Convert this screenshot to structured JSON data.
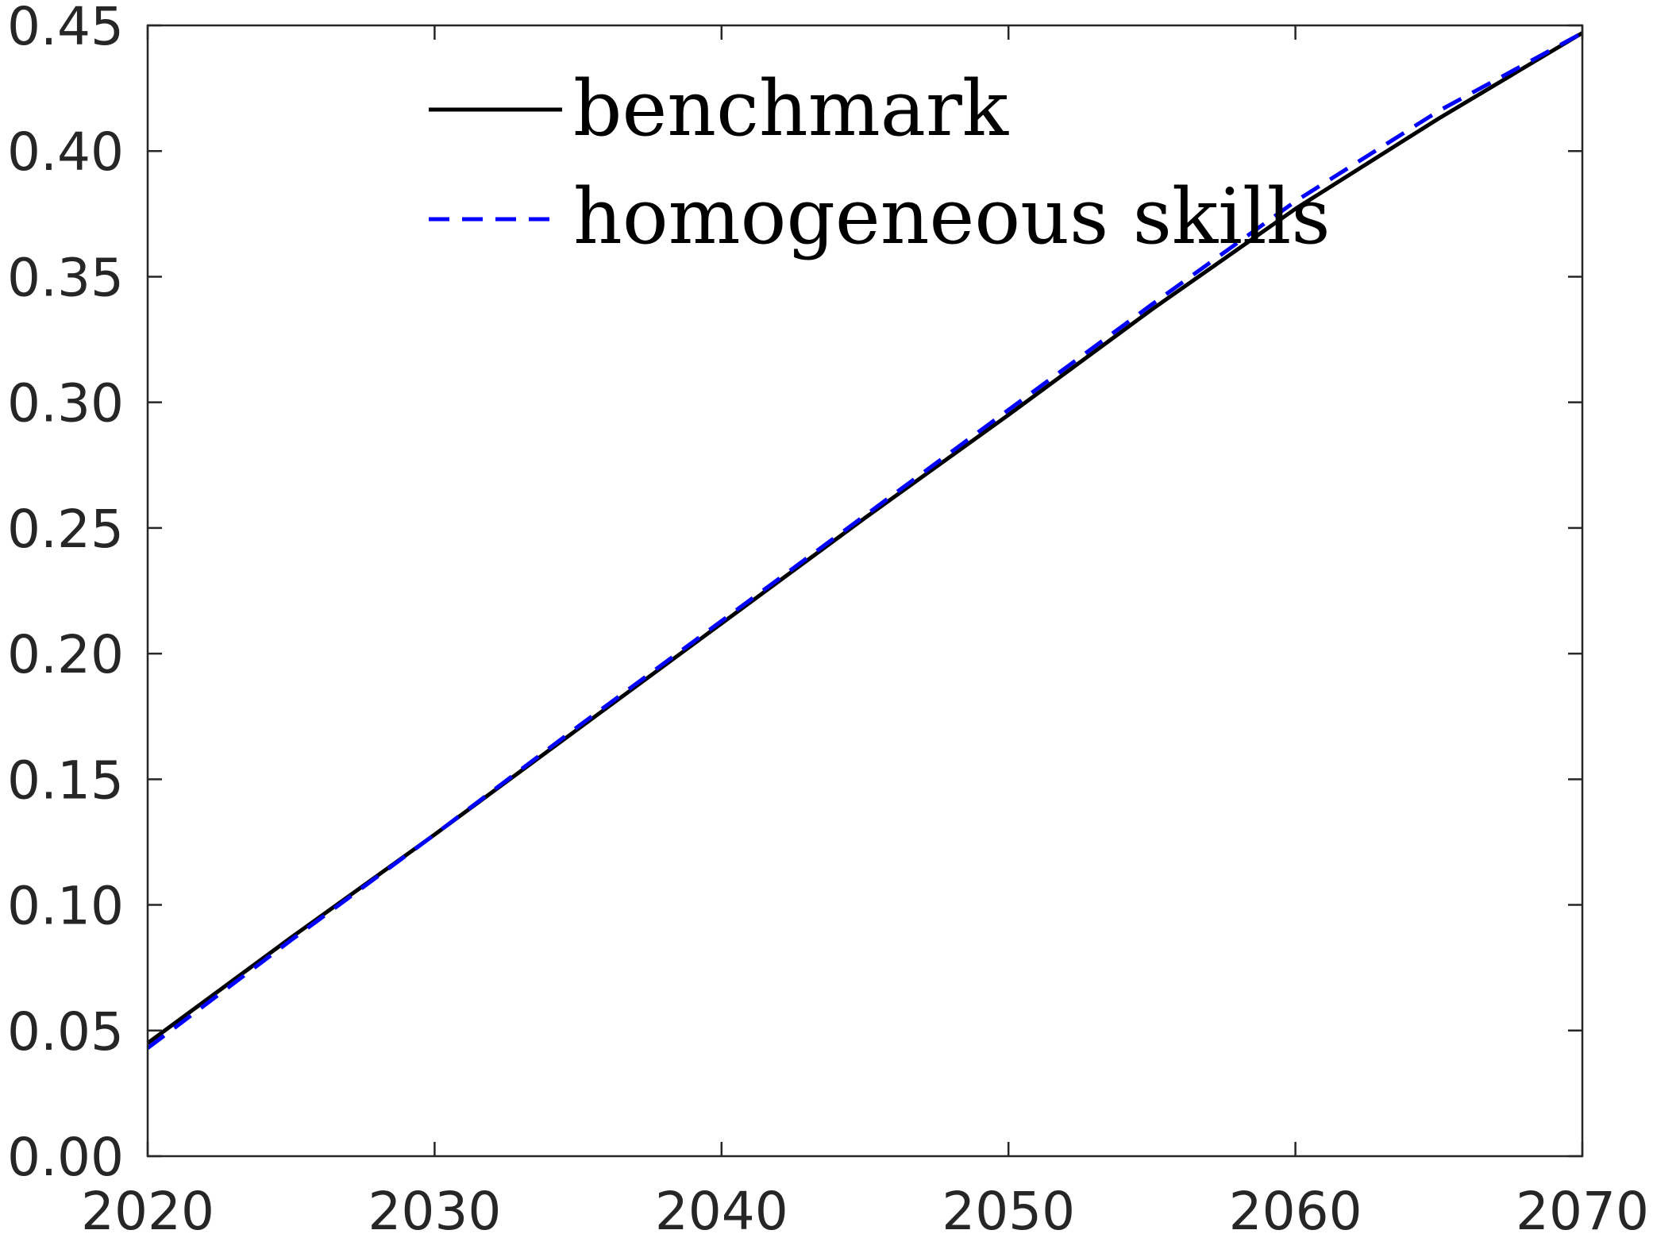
{
  "chart_data": {
    "type": "line",
    "title": "",
    "xlabel": "",
    "ylabel": "",
    "xlim": [
      2020,
      2070
    ],
    "ylim": [
      0,
      0.45
    ],
    "xticks": [
      "2020",
      "2030",
      "2040",
      "2050",
      "2060",
      "2070"
    ],
    "yticks": [
      "0.00",
      "0.05",
      "0.10",
      "0.15",
      "0.20",
      "0.25",
      "0.30",
      "0.35",
      "0.40",
      "0.45"
    ],
    "grid": false,
    "legend_position": "top-left (inside)",
    "series": [
      {
        "name": "benchmark",
        "color": "#000000",
        "style": "solid",
        "x": [
          2020,
          2025,
          2030,
          2035,
          2040,
          2045,
          2050,
          2055,
          2060,
          2065,
          2070
        ],
        "y": [
          0.045,
          0.087,
          0.128,
          0.17,
          0.212,
          0.254,
          0.295,
          0.337,
          0.377,
          0.413,
          0.447
        ]
      },
      {
        "name": "homogeneous skills",
        "color": "#0000ff",
        "style": "dashed",
        "x": [
          2020,
          2025,
          2030,
          2035,
          2040,
          2045,
          2050,
          2055,
          2060,
          2065,
          2070
        ],
        "y": [
          0.043,
          0.086,
          0.128,
          0.171,
          0.213,
          0.255,
          0.297,
          0.339,
          0.38,
          0.416,
          0.447
        ]
      }
    ]
  }
}
